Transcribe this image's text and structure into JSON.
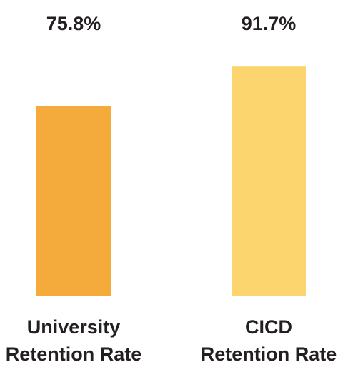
{
  "chart_data": {
    "type": "bar",
    "title": "",
    "xlabel": "",
    "ylabel": "",
    "categories": [
      [
        "University",
        "Retention Rate"
      ],
      [
        "CICD",
        "Retention Rate"
      ]
    ],
    "values": [
      75.8,
      91.7
    ],
    "value_labels": [
      "75.8%",
      "91.7%"
    ],
    "colors": [
      "#f4ab3c",
      "#fdd56f"
    ],
    "ylim": [
      0,
      100
    ],
    "grid": false,
    "legend": "none"
  }
}
